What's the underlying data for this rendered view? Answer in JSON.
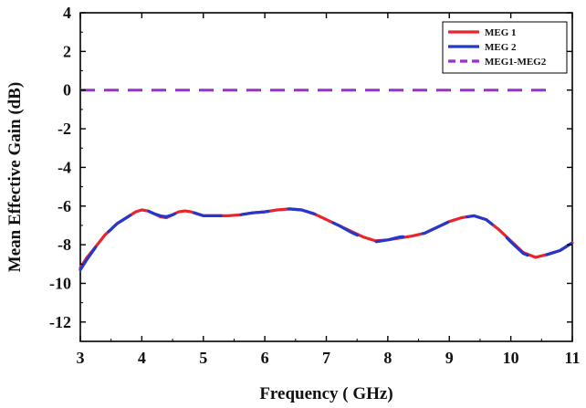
{
  "chart_data": {
    "type": "line",
    "xlabel": "Frequency ( GHz)",
    "ylabel": "Mean Effective Gain (dB)",
    "xlim": [
      3,
      11
    ],
    "ylim": [
      -13,
      4
    ],
    "xticks": [
      "3",
      "4",
      "5",
      "6",
      "7",
      "8",
      "9",
      "10",
      "11"
    ],
    "yticks": [
      "4",
      "2",
      "0",
      "-2",
      "-4",
      "-6",
      "-8",
      "-10",
      "-12"
    ],
    "grid": false,
    "legend_position": "top-right",
    "series": [
      {
        "name": "MEG 1",
        "color": "#e8252b",
        "style": "solid",
        "x": [
          3.0,
          3.1,
          3.2,
          3.3,
          3.4,
          3.5,
          3.6,
          3.7,
          3.8,
          3.9,
          4.0,
          4.1,
          4.2,
          4.3,
          4.4,
          4.5,
          4.6,
          4.7,
          4.8,
          4.9,
          5.0,
          5.2,
          5.4,
          5.6,
          5.8,
          6.0,
          6.2,
          6.4,
          6.6,
          6.8,
          7.0,
          7.2,
          7.4,
          7.6,
          7.8,
          8.0,
          8.2,
          8.4,
          8.6,
          8.8,
          9.0,
          9.2,
          9.4,
          9.6,
          9.8,
          10.0,
          10.2,
          10.4,
          10.6,
          10.8,
          11.0
        ],
        "y": [
          -9.2,
          -8.7,
          -8.3,
          -7.9,
          -7.5,
          -7.2,
          -6.9,
          -6.7,
          -6.5,
          -6.3,
          -6.2,
          -6.25,
          -6.4,
          -6.55,
          -6.6,
          -6.45,
          -6.3,
          -6.25,
          -6.3,
          -6.4,
          -6.5,
          -6.5,
          -6.5,
          -6.45,
          -6.35,
          -6.3,
          -6.2,
          -6.15,
          -6.2,
          -6.4,
          -6.7,
          -7.0,
          -7.3,
          -7.6,
          -7.8,
          -7.75,
          -7.65,
          -7.55,
          -7.4,
          -7.1,
          -6.8,
          -6.6,
          -6.5,
          -6.7,
          -7.2,
          -7.8,
          -8.4,
          -8.65,
          -8.5,
          -8.3,
          -7.9
        ]
      },
      {
        "name": "MEG 2",
        "color": "#2438c9",
        "style": "solid",
        "x": [
          3.0,
          3.1,
          3.2,
          3.3,
          3.4,
          3.5,
          3.6,
          3.7,
          3.8,
          3.9,
          4.0,
          4.1,
          4.2,
          4.3,
          4.4,
          4.5,
          4.6,
          4.7,
          4.8,
          4.9,
          5.0,
          5.2,
          5.4,
          5.6,
          5.8,
          6.0,
          6.2,
          6.4,
          6.6,
          6.8,
          7.0,
          7.2,
          7.4,
          7.6,
          7.8,
          8.0,
          8.2,
          8.4,
          8.6,
          8.8,
          9.0,
          9.2,
          9.4,
          9.6,
          9.8,
          10.0,
          10.2,
          10.4,
          10.6,
          10.8,
          11.0
        ],
        "y": [
          -9.3,
          -8.8,
          -8.35,
          -7.9,
          -7.5,
          -7.2,
          -6.9,
          -6.7,
          -6.5,
          -6.3,
          -6.2,
          -6.25,
          -6.4,
          -6.5,
          -6.55,
          -6.45,
          -6.3,
          -6.25,
          -6.3,
          -6.4,
          -6.5,
          -6.5,
          -6.5,
          -6.45,
          -6.35,
          -6.3,
          -6.2,
          -6.15,
          -6.2,
          -6.4,
          -6.7,
          -7.0,
          -7.35,
          -7.65,
          -7.85,
          -7.75,
          -7.6,
          -7.55,
          -7.4,
          -7.1,
          -6.8,
          -6.6,
          -6.5,
          -6.7,
          -7.2,
          -7.85,
          -8.45,
          -8.7,
          -8.5,
          -8.3,
          -7.9
        ]
      },
      {
        "name": "MEG1-MEG2",
        "color": "#9b2fd1",
        "style": "dashed",
        "x": [
          3.0,
          10.6
        ],
        "y": [
          0,
          0
        ]
      }
    ]
  }
}
